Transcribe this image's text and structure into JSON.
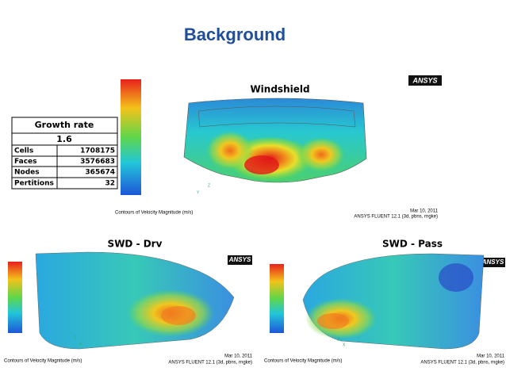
{
  "title": "Background",
  "table": {
    "header": "Growth rate",
    "subheader": 1.6,
    "rows": [
      [
        "Cells",
        1708175
      ],
      [
        "Faces",
        3576683
      ],
      [
        "Nodes",
        365674
      ],
      [
        "Pertitions",
        32
      ]
    ]
  },
  "panels": [
    {
      "label": "Windshield",
      "logo": "ANSYS",
      "caption": "Contours of Velocity Magnitude (m/s)",
      "date": "Mar 10, 2011",
      "solver": "ANSYS FLUENT 12.1 (3d, pbns, rngke)",
      "axes": [
        "Z",
        "Y"
      ]
    },
    {
      "label": "SWD - Drv",
      "logo": "ANSYS",
      "caption": "Contours of Velocity Magnitude (m/s)",
      "date": "Mar 10, 2011",
      "solver": "ANSYS FLUENT 12.1 (3d, pbns, rngke)",
      "axes": [
        "Z",
        "X"
      ]
    },
    {
      "label": "SWD - Pass",
      "logo": "ANSYS",
      "caption": "Contours of Velocity Magnitude (m/s)",
      "date": "Mar 10, 2011",
      "solver": "ANSYS FLUENT 12.1 (3d, pbns, rngke)",
      "axes": [
        "Z",
        "X"
      ]
    }
  ]
}
